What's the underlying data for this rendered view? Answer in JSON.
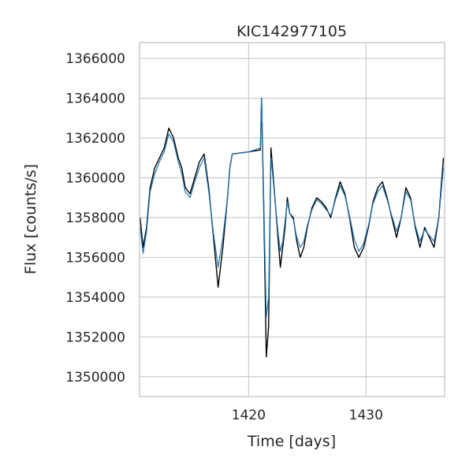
{
  "chart_data": {
    "type": "line",
    "title": "KIC142977105",
    "xlabel": "Time [days]",
    "ylabel": "Flux [counts/s]",
    "xlim": [
      1410.7,
      1436.7
    ],
    "ylim": [
      1349000,
      1366800
    ],
    "xticks": [
      1420,
      1430
    ],
    "xtick_labels": [
      "1420",
      "1430"
    ],
    "yticks": [
      1350000,
      1352000,
      1354000,
      1356000,
      1358000,
      1360000,
      1362000,
      1364000,
      1366000
    ],
    "ytick_labels": [
      "1350000",
      "1352000",
      "1354000",
      "1356000",
      "1358000",
      "1360000",
      "1362000",
      "1364000",
      "1366000"
    ],
    "grid": true,
    "legend": "none",
    "series": [
      {
        "role": "raw",
        "color": "#000000",
        "x": [
          1410.75,
          1411.0,
          1411.3,
          1411.6,
          1412.0,
          1412.4,
          1412.8,
          1413.2,
          1413.6,
          1414.0,
          1414.3,
          1414.6,
          1415.0,
          1415.4,
          1415.8,
          1416.2,
          1416.6,
          1417.0,
          1417.4,
          1417.8,
          1418.2,
          1418.4,
          1418.6,
          1420.0,
          1421.0,
          1421.1,
          1421.3,
          1421.5,
          1421.7,
          1421.9,
          1422.1,
          1422.3,
          1422.5,
          1422.7,
          1422.9,
          1423.1,
          1423.3,
          1423.5,
          1423.8,
          1424.1,
          1424.4,
          1424.7,
          1425.0,
          1425.4,
          1425.8,
          1426.2,
          1426.6,
          1427.0,
          1427.4,
          1427.8,
          1428.2,
          1428.6,
          1429.0,
          1429.4,
          1429.8,
          1430.2,
          1430.6,
          1431.0,
          1431.4,
          1431.8,
          1432.2,
          1432.6,
          1433.0,
          1433.4,
          1433.8,
          1434.2,
          1434.6,
          1435.0,
          1435.4,
          1435.8,
          1436.2,
          1436.6
        ],
        "values": [
          1358000,
          1356500,
          1357500,
          1359500,
          1360500,
          1361000,
          1361500,
          1362500,
          1362000,
          1361000,
          1360500,
          1359500,
          1359200,
          1360000,
          1360800,
          1361200,
          1359500,
          1357000,
          1354500,
          1356500,
          1359000,
          1360500,
          1361200,
          1361300,
          1361400,
          1364000,
          1358000,
          1351000,
          1352500,
          1361500,
          1360000,
          1358500,
          1357000,
          1355500,
          1356500,
          1357500,
          1359000,
          1358200,
          1358000,
          1356800,
          1356000,
          1356500,
          1357500,
          1358500,
          1359000,
          1358800,
          1358500,
          1358000,
          1359000,
          1359800,
          1359200,
          1358000,
          1356500,
          1356000,
          1356500,
          1357500,
          1358800,
          1359500,
          1359800,
          1359000,
          1358000,
          1357000,
          1358000,
          1359500,
          1359000,
          1357500,
          1356500,
          1357500,
          1357000,
          1356500,
          1358000,
          1361000
        ]
      },
      {
        "role": "smoothed",
        "color": "#1f77b4",
        "x": [
          1410.75,
          1411.0,
          1411.3,
          1411.6,
          1412.0,
          1412.4,
          1412.8,
          1413.2,
          1413.6,
          1414.0,
          1414.3,
          1414.6,
          1415.0,
          1415.4,
          1415.8,
          1416.2,
          1416.6,
          1417.0,
          1417.4,
          1417.8,
          1418.2,
          1418.4,
          1418.6,
          1420.0,
          1421.0,
          1421.1,
          1421.3,
          1421.5,
          1421.7,
          1421.9,
          1422.1,
          1422.3,
          1422.5,
          1422.7,
          1422.9,
          1423.1,
          1423.3,
          1423.5,
          1423.8,
          1424.1,
          1424.4,
          1424.7,
          1425.0,
          1425.4,
          1425.8,
          1426.2,
          1426.6,
          1427.0,
          1427.4,
          1427.8,
          1428.2,
          1428.6,
          1429.0,
          1429.4,
          1429.8,
          1430.2,
          1430.6,
          1431.0,
          1431.4,
          1431.8,
          1432.2,
          1432.6,
          1433.0,
          1433.4,
          1433.8,
          1434.2,
          1434.6,
          1435.0,
          1435.4,
          1435.8,
          1436.2,
          1436.6
        ],
        "values": [
          1357500,
          1356200,
          1357300,
          1359300,
          1360200,
          1360800,
          1361300,
          1362200,
          1361800,
          1360800,
          1360200,
          1359300,
          1359000,
          1359800,
          1360500,
          1361000,
          1359300,
          1357200,
          1355500,
          1357000,
          1359000,
          1360500,
          1361200,
          1361300,
          1361500,
          1364000,
          1358500,
          1353000,
          1354000,
          1361000,
          1359800,
          1358500,
          1357300,
          1356300,
          1356800,
          1357800,
          1358800,
          1358200,
          1357900,
          1357000,
          1356500,
          1356800,
          1357600,
          1358400,
          1358900,
          1358700,
          1358400,
          1358100,
          1358900,
          1359600,
          1359100,
          1358100,
          1356900,
          1356300,
          1356700,
          1357600,
          1358700,
          1359300,
          1359600,
          1358900,
          1358100,
          1357300,
          1358000,
          1359300,
          1358900,
          1357600,
          1356800,
          1357400,
          1357100,
          1356800,
          1358000,
          1360500
        ]
      }
    ]
  }
}
